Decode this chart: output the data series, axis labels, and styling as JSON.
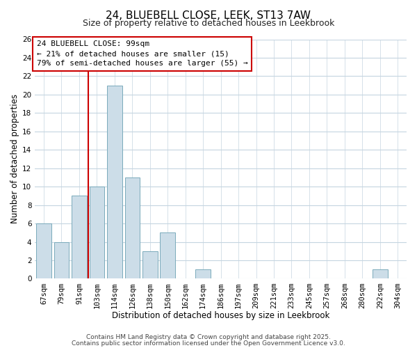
{
  "title": "24, BLUEBELL CLOSE, LEEK, ST13 7AW",
  "subtitle": "Size of property relative to detached houses in Leekbrook",
  "xlabel": "Distribution of detached houses by size in Leekbrook",
  "ylabel": "Number of detached properties",
  "bar_labels": [
    "67sqm",
    "79sqm",
    "91sqm",
    "103sqm",
    "114sqm",
    "126sqm",
    "138sqm",
    "150sqm",
    "162sqm",
    "174sqm",
    "186sqm",
    "197sqm",
    "209sqm",
    "221sqm",
    "233sqm",
    "245sqm",
    "257sqm",
    "268sqm",
    "280sqm",
    "292sqm",
    "304sqm"
  ],
  "bar_values": [
    6,
    4,
    9,
    10,
    21,
    11,
    3,
    5,
    0,
    1,
    0,
    0,
    0,
    0,
    0,
    0,
    0,
    0,
    0,
    1,
    0
  ],
  "bar_color": "#ccdde8",
  "bar_edge_color": "#7aaabb",
  "vline_color": "#cc0000",
  "vline_pos": 2.5,
  "annotation_title": "24 BLUEBELL CLOSE: 99sqm",
  "annotation_line1": "← 21% of detached houses are smaller (15)",
  "annotation_line2": "79% of semi-detached houses are larger (55) →",
  "annotation_box_color": "#ffffff",
  "annotation_box_edge": "#cc0000",
  "ylim": [
    0,
    26
  ],
  "yticks": [
    0,
    2,
    4,
    6,
    8,
    10,
    12,
    14,
    16,
    18,
    20,
    22,
    24,
    26
  ],
  "footer1": "Contains HM Land Registry data © Crown copyright and database right 2025.",
  "footer2": "Contains public sector information licensed under the Open Government Licence v3.0.",
  "bg_color": "#ffffff",
  "grid_color": "#c5d5e0",
  "title_fontsize": 11,
  "subtitle_fontsize": 9,
  "axis_label_fontsize": 8.5,
  "tick_fontsize": 7.5,
  "annotation_fontsize": 8,
  "footer_fontsize": 6.5
}
